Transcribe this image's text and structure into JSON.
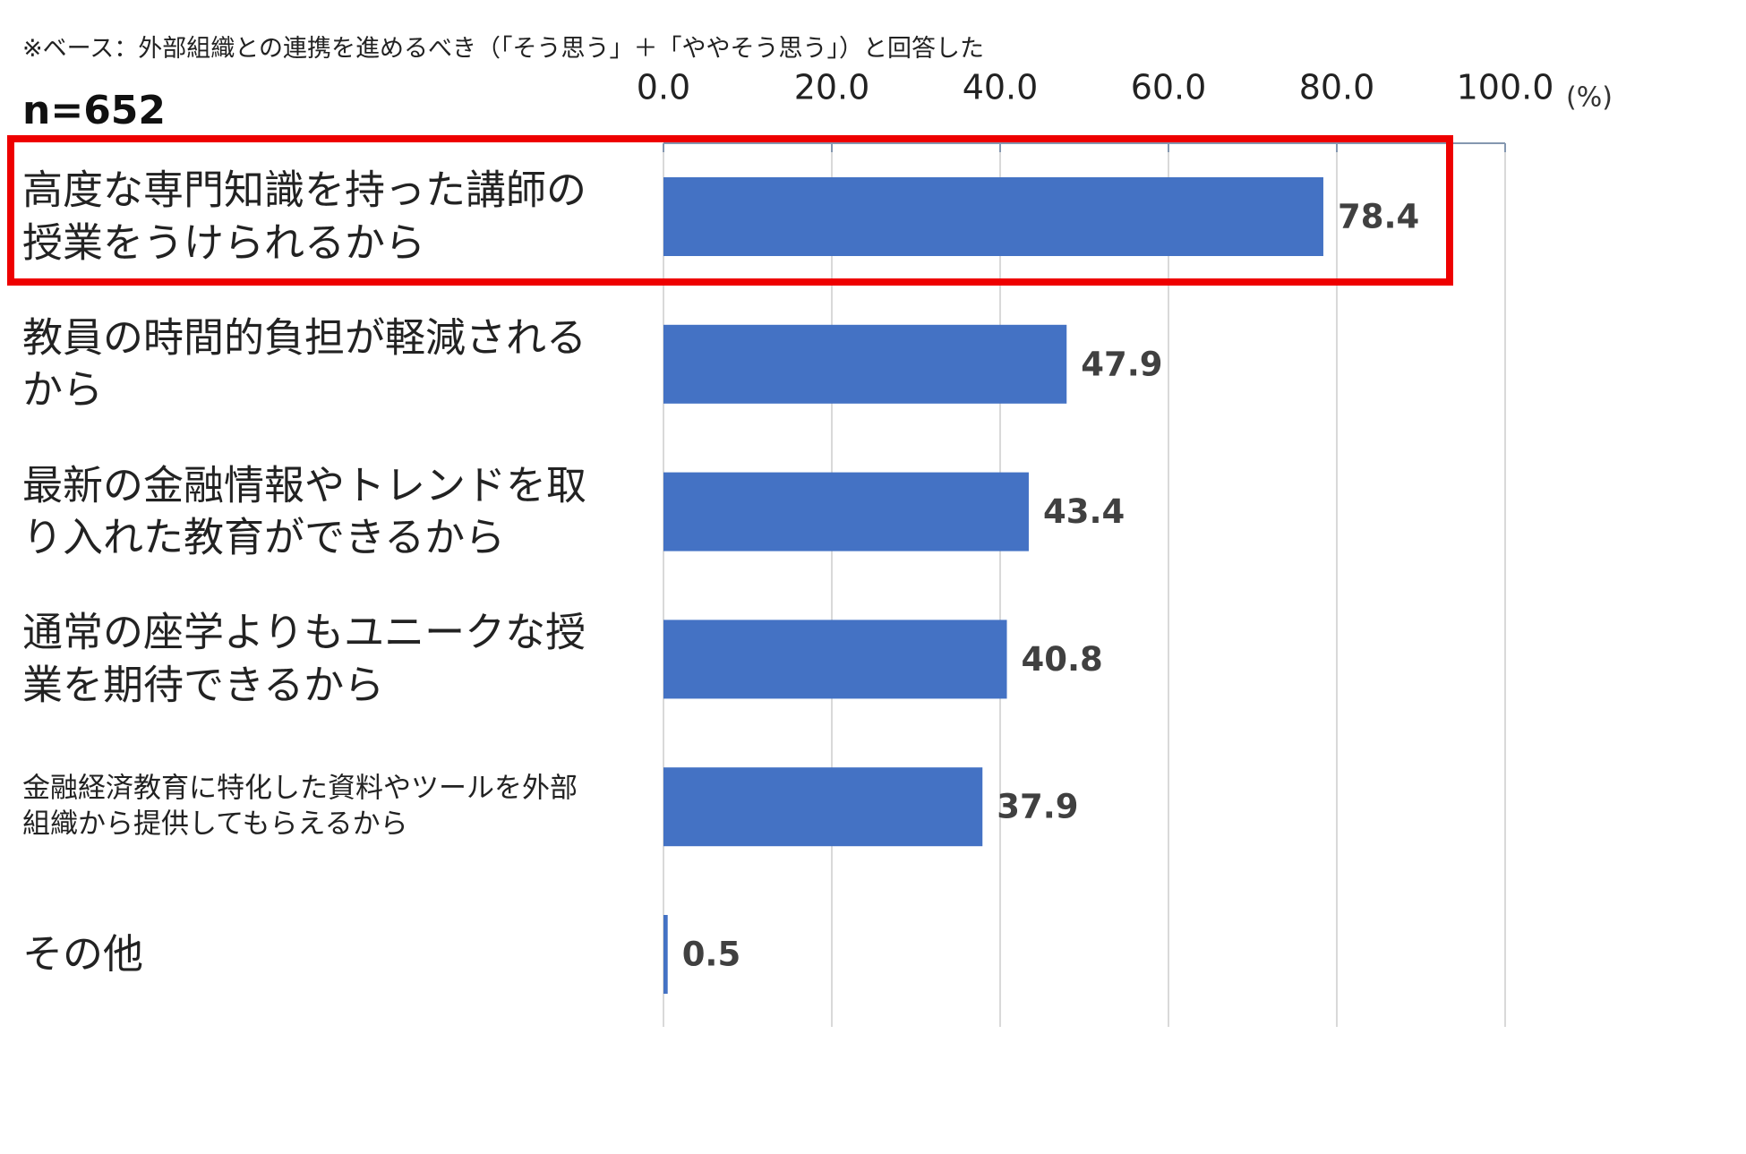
{
  "chart_data": {
    "type": "barh",
    "subtitle": "※ベース：外部組織との連携を進めるべき（「そう思う」＋「ややそう思う」）と回答した",
    "annotation": "n=652",
    "unit_label": "(%)",
    "categories": [
      "高度な専門知識を持った講師の授業をうけられるから",
      "教員の時間的負担が軽減されるから",
      "最新の金融情報やトレンドを取り入れた教育ができるから",
      "通常の座学よりもユニークな授業を期待できるから",
      "金融経済教育に特化した資料やツールを外部組織から提供してもらえるから",
      "その他"
    ],
    "values": [
      78.4,
      47.9,
      43.4,
      40.8,
      37.9,
      0.5
    ],
    "color": "#4472c4",
    "xlim": [
      0,
      100
    ],
    "xticks": [
      {
        "value": 0,
        "label": "0.0"
      },
      {
        "value": 20,
        "label": "20.0"
      },
      {
        "value": 40,
        "label": "40.0"
      },
      {
        "value": 60,
        "label": "60.0"
      },
      {
        "value": 80,
        "label": "80.0"
      },
      {
        "value": 100,
        "label": "100.0"
      }
    ],
    "grid": true
  }
}
